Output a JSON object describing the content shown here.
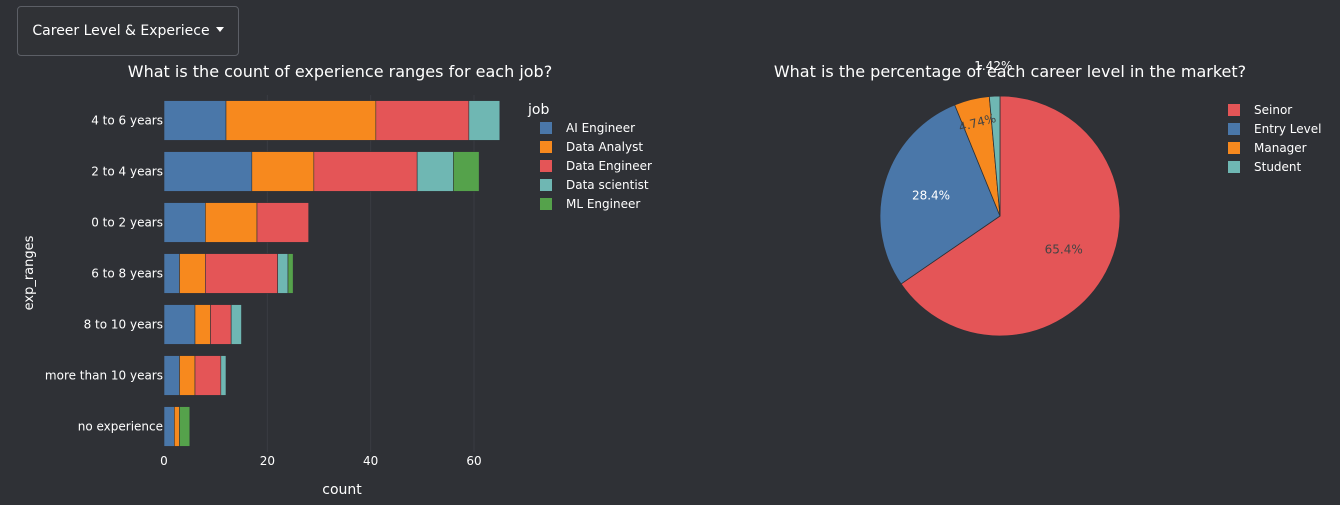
{
  "dropdown": {
    "label": "Career Level & Experiece"
  },
  "chart_data": [
    {
      "type": "bar",
      "orientation": "horizontal",
      "stacked": true,
      "title": "What is the count of experience ranges for each job?",
      "xlabel": "count",
      "ylabel": "exp_ranges",
      "xlim": [
        0,
        66
      ],
      "xticks": [
        0,
        20,
        40,
        60
      ],
      "grid": true,
      "legend_title": "job",
      "legend_position": "right",
      "categories": [
        "4 to 6 years",
        "2 to 4 years",
        "0 to 2 years",
        "6 to 8 years",
        "8 to 10 years",
        "more than 10 years",
        "no experience"
      ],
      "series": [
        {
          "name": "AI Engineer",
          "color": "#4a77a9",
          "values": [
            12,
            17,
            8,
            3,
            6,
            3,
            2
          ]
        },
        {
          "name": "Data Analyst",
          "color": "#f7891e",
          "values": [
            29,
            12,
            10,
            5,
            3,
            3,
            1
          ]
        },
        {
          "name": "Data Engineer",
          "color": "#e45557",
          "values": [
            18,
            20,
            10,
            14,
            4,
            5,
            0
          ]
        },
        {
          "name": "Data scientist",
          "color": "#6fb7b3",
          "values": [
            6,
            7,
            0,
            2,
            2,
            1,
            0
          ]
        },
        {
          "name": "ML Engineer",
          "color": "#55a24b",
          "values": [
            0,
            5,
            0,
            1,
            0,
            0,
            2
          ]
        }
      ]
    },
    {
      "type": "pie",
      "title": "What is the percentage of each career level in the market?",
      "legend_position": "top-right",
      "labels": [
        "Seinor",
        "Entry Level",
        "Manager",
        "Student"
      ],
      "values": [
        65.4,
        28.4,
        4.74,
        1.42
      ],
      "value_labels": [
        "65.4%",
        "28.4%",
        "4.74%",
        "1.42%"
      ],
      "colors": [
        "#e45557",
        "#4a77a9",
        "#f7891e",
        "#6fb7b3"
      ]
    }
  ]
}
